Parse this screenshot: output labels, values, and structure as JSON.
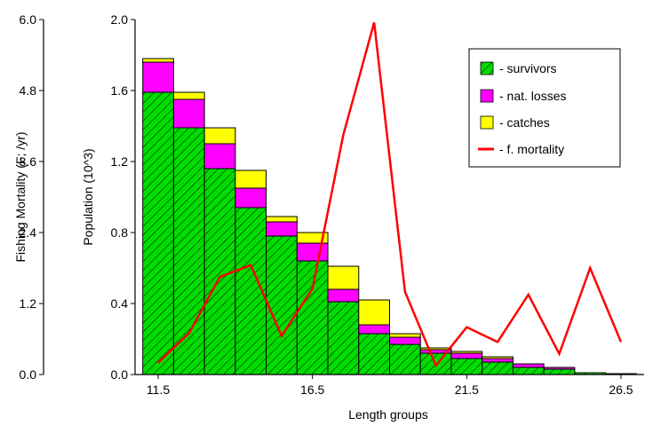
{
  "chart_data": {
    "type": "bar",
    "x_label": "Length groups",
    "y_left_outer_label": "Fishing Mortality (F; /yr)",
    "y_left_inner_label": "Population (10^3)",
    "x_ticks": [
      "11.5",
      "16.5",
      "21.5",
      "26.5"
    ],
    "y_population_ticks": [
      "0.0",
      "0.4",
      "0.8",
      "1.2",
      "1.6",
      "2.0"
    ],
    "y_mortality_ticks": [
      "0.0",
      "1.2",
      "2.4",
      "3.6",
      "4.8",
      "6.0"
    ],
    "population_range": [
      0,
      2.0
    ],
    "mortality_range": [
      0,
      6.0
    ],
    "x_range": [
      10.75,
      27.25
    ],
    "bin_width": 1,
    "bins": [
      11.5,
      12.5,
      13.5,
      14.5,
      15.5,
      16.5,
      17.5,
      18.5,
      19.5,
      20.5,
      21.5,
      22.5,
      23.5,
      24.5,
      25.5,
      26.5
    ],
    "series": [
      {
        "name": "- survivors",
        "key": "survivors",
        "color": "#00dd00",
        "values": [
          1.59,
          1.39,
          1.16,
          0.94,
          0.78,
          0.64,
          0.41,
          0.23,
          0.17,
          0.12,
          0.09,
          0.07,
          0.04,
          0.03,
          0.01,
          0.005
        ]
      },
      {
        "name": "- nat. losses",
        "key": "nat_losses",
        "color": "#ff00ff",
        "values": [
          0.17,
          0.16,
          0.14,
          0.11,
          0.08,
          0.1,
          0.07,
          0.05,
          0.04,
          0.02,
          0.03,
          0.02,
          0.02,
          0.01,
          0.0,
          0.0
        ]
      },
      {
        "name": "- catches",
        "key": "catches",
        "color": "#ffff00",
        "values": [
          0.02,
          0.04,
          0.09,
          0.1,
          0.03,
          0.06,
          0.13,
          0.14,
          0.02,
          0.01,
          0.01,
          0.01,
          0.0,
          0.0,
          0.0,
          0.0
        ]
      }
    ],
    "mortality_series": {
      "name": "- f. mortality",
      "color": "#ff0000",
      "values": [
        0.2,
        0.7,
        1.65,
        1.85,
        0.65,
        1.45,
        4.05,
        5.95,
        1.4,
        0.15,
        0.8,
        0.55,
        1.35,
        0.35,
        1.8,
        0.55
      ]
    },
    "legend_position": "top-right"
  }
}
